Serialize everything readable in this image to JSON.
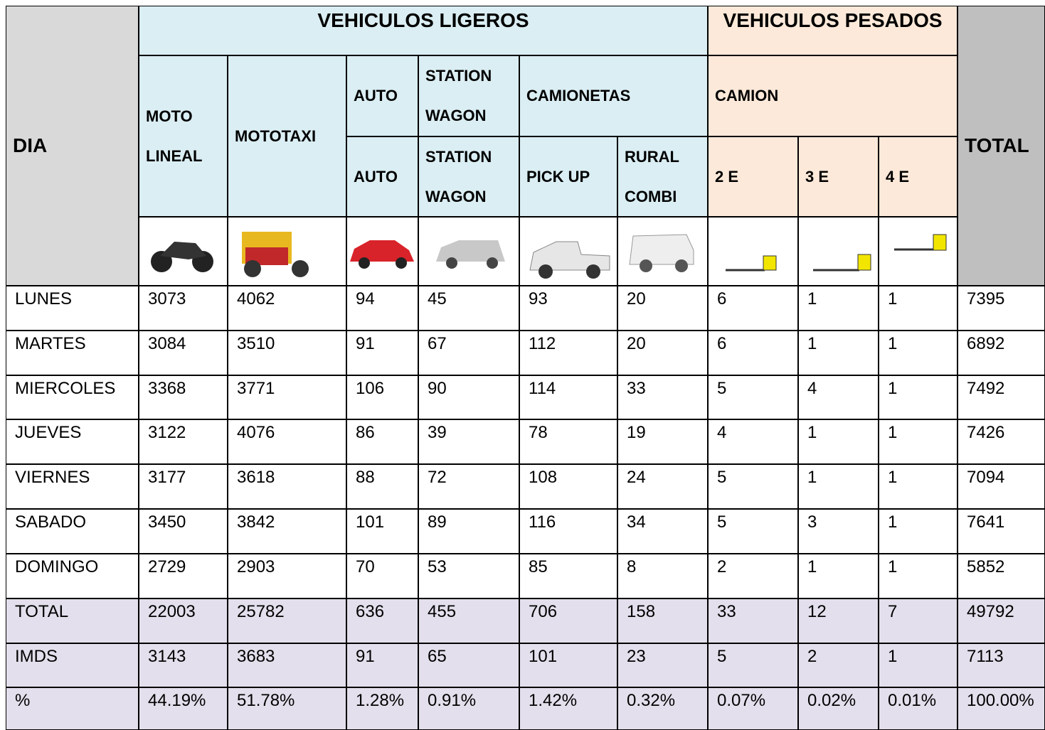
{
  "header": {
    "dia": "DIA",
    "ligeros": "VEHICULOS LIGEROS",
    "pesados": "VEHICULOS PESADOS",
    "total": "TOTAL",
    "moto_lineal": "MOTO LINEAL",
    "mototaxi": "MOTOTAXI",
    "auto_group": "AUTO",
    "station_wagon_group": "STATION WAGON",
    "camionetas": "CAMIONETAS",
    "camion": "CAMION",
    "auto": "AUTO",
    "station_wagon": "STATION WAGON",
    "pick_up": "PICK UP",
    "rural_combi": "RURAL COMBI",
    "e2": "2 E",
    "e3": "3 E",
    "e4": "4 E"
  },
  "table": {
    "rows": [
      [
        "LUNES",
        3073,
        4062,
        94,
        45,
        93,
        20,
        6,
        1,
        1,
        7395
      ],
      [
        "MARTES",
        3084,
        3510,
        91,
        67,
        112,
        20,
        6,
        1,
        1,
        6892
      ],
      [
        "MIERCOLES",
        3368,
        3771,
        106,
        90,
        114,
        33,
        5,
        4,
        1,
        7492
      ],
      [
        "JUEVES",
        3122,
        4076,
        86,
        39,
        78,
        19,
        4,
        1,
        1,
        7426
      ],
      [
        "VIERNES",
        3177,
        3618,
        88,
        72,
        108,
        24,
        5,
        1,
        1,
        7094
      ],
      [
        "SABADO",
        3450,
        3842,
        101,
        89,
        116,
        34,
        5,
        3,
        1,
        7641
      ],
      [
        "DOMINGO",
        2729,
        2903,
        70,
        53,
        85,
        8,
        2,
        1,
        1,
        5852
      ],
      [
        "TOTAL",
        22003,
        25782,
        636,
        455,
        706,
        158,
        33,
        12,
        7,
        49792
      ],
      [
        "IMDS",
        3143,
        3683,
        91,
        65,
        101,
        23,
        5,
        2,
        1,
        7113
      ],
      [
        "%",
        "44.19%",
        "51.78%",
        "1.28%",
        "0.91%",
        "1.42%",
        "0.32%",
        "0.07%",
        "0.02%",
        "0.01%",
        "100.00%"
      ]
    ]
  }
}
